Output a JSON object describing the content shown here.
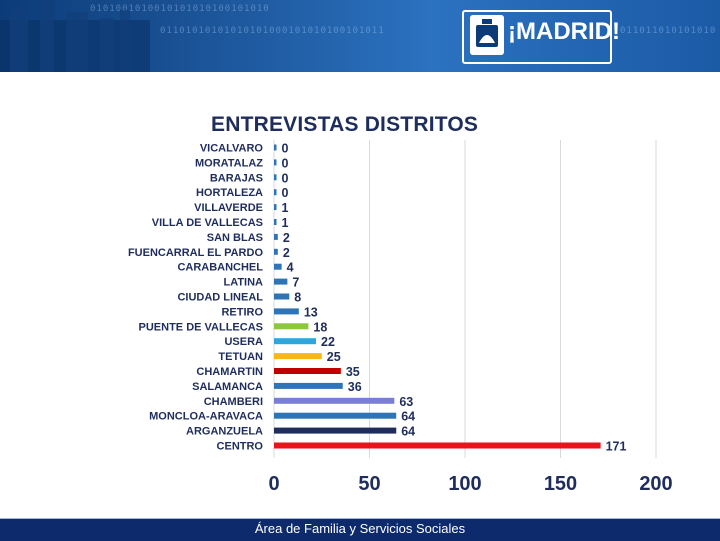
{
  "header": {
    "logo_text": "¡MADRID!"
  },
  "footer": {
    "text": "Área de Familia y Servicios Sociales"
  },
  "chart_data": {
    "type": "bar",
    "orientation": "horizontal",
    "title": "ENTREVISTAS DISTRITOS",
    "xlim": [
      0,
      200
    ],
    "xticks": [
      0,
      50,
      100,
      150,
      200
    ],
    "grid": true,
    "categories": [
      "VICALVARO",
      "MORATALAZ",
      "BARAJAS",
      "HORTALEZA",
      "VILLAVERDE",
      "VILLA DE VALLECAS",
      "SAN BLAS",
      "FUENCARRAL EL PARDO",
      "CARABANCHEL",
      "LATINA",
      "CIUDAD LINEAL",
      "RETIRO",
      "PUENTE DE VALLECAS",
      "USERA",
      "TETUAN",
      "CHAMARTIN",
      "SALAMANCA",
      "CHAMBERI",
      "MONCLOA-ARAVACA",
      "ARGANZUELA",
      "CENTRO"
    ],
    "values": [
      0,
      0,
      0,
      0,
      1,
      1,
      2,
      2,
      4,
      7,
      8,
      13,
      18,
      22,
      25,
      35,
      36,
      63,
      64,
      64,
      171
    ],
    "colors": [
      "#2f75b5",
      "#2f75b5",
      "#2f75b5",
      "#2f75b5",
      "#2f75b5",
      "#2f75b5",
      "#2f75b5",
      "#2f75b5",
      "#2f75b5",
      "#2f75b5",
      "#2f75b5",
      "#2f75b5",
      "#8dc63f",
      "#29a8e0",
      "#f7b718",
      "#c00000",
      "#2e75b6",
      "#7b7fd4",
      "#2f75b5",
      "#1f2d5c",
      "#e8141c"
    ]
  }
}
